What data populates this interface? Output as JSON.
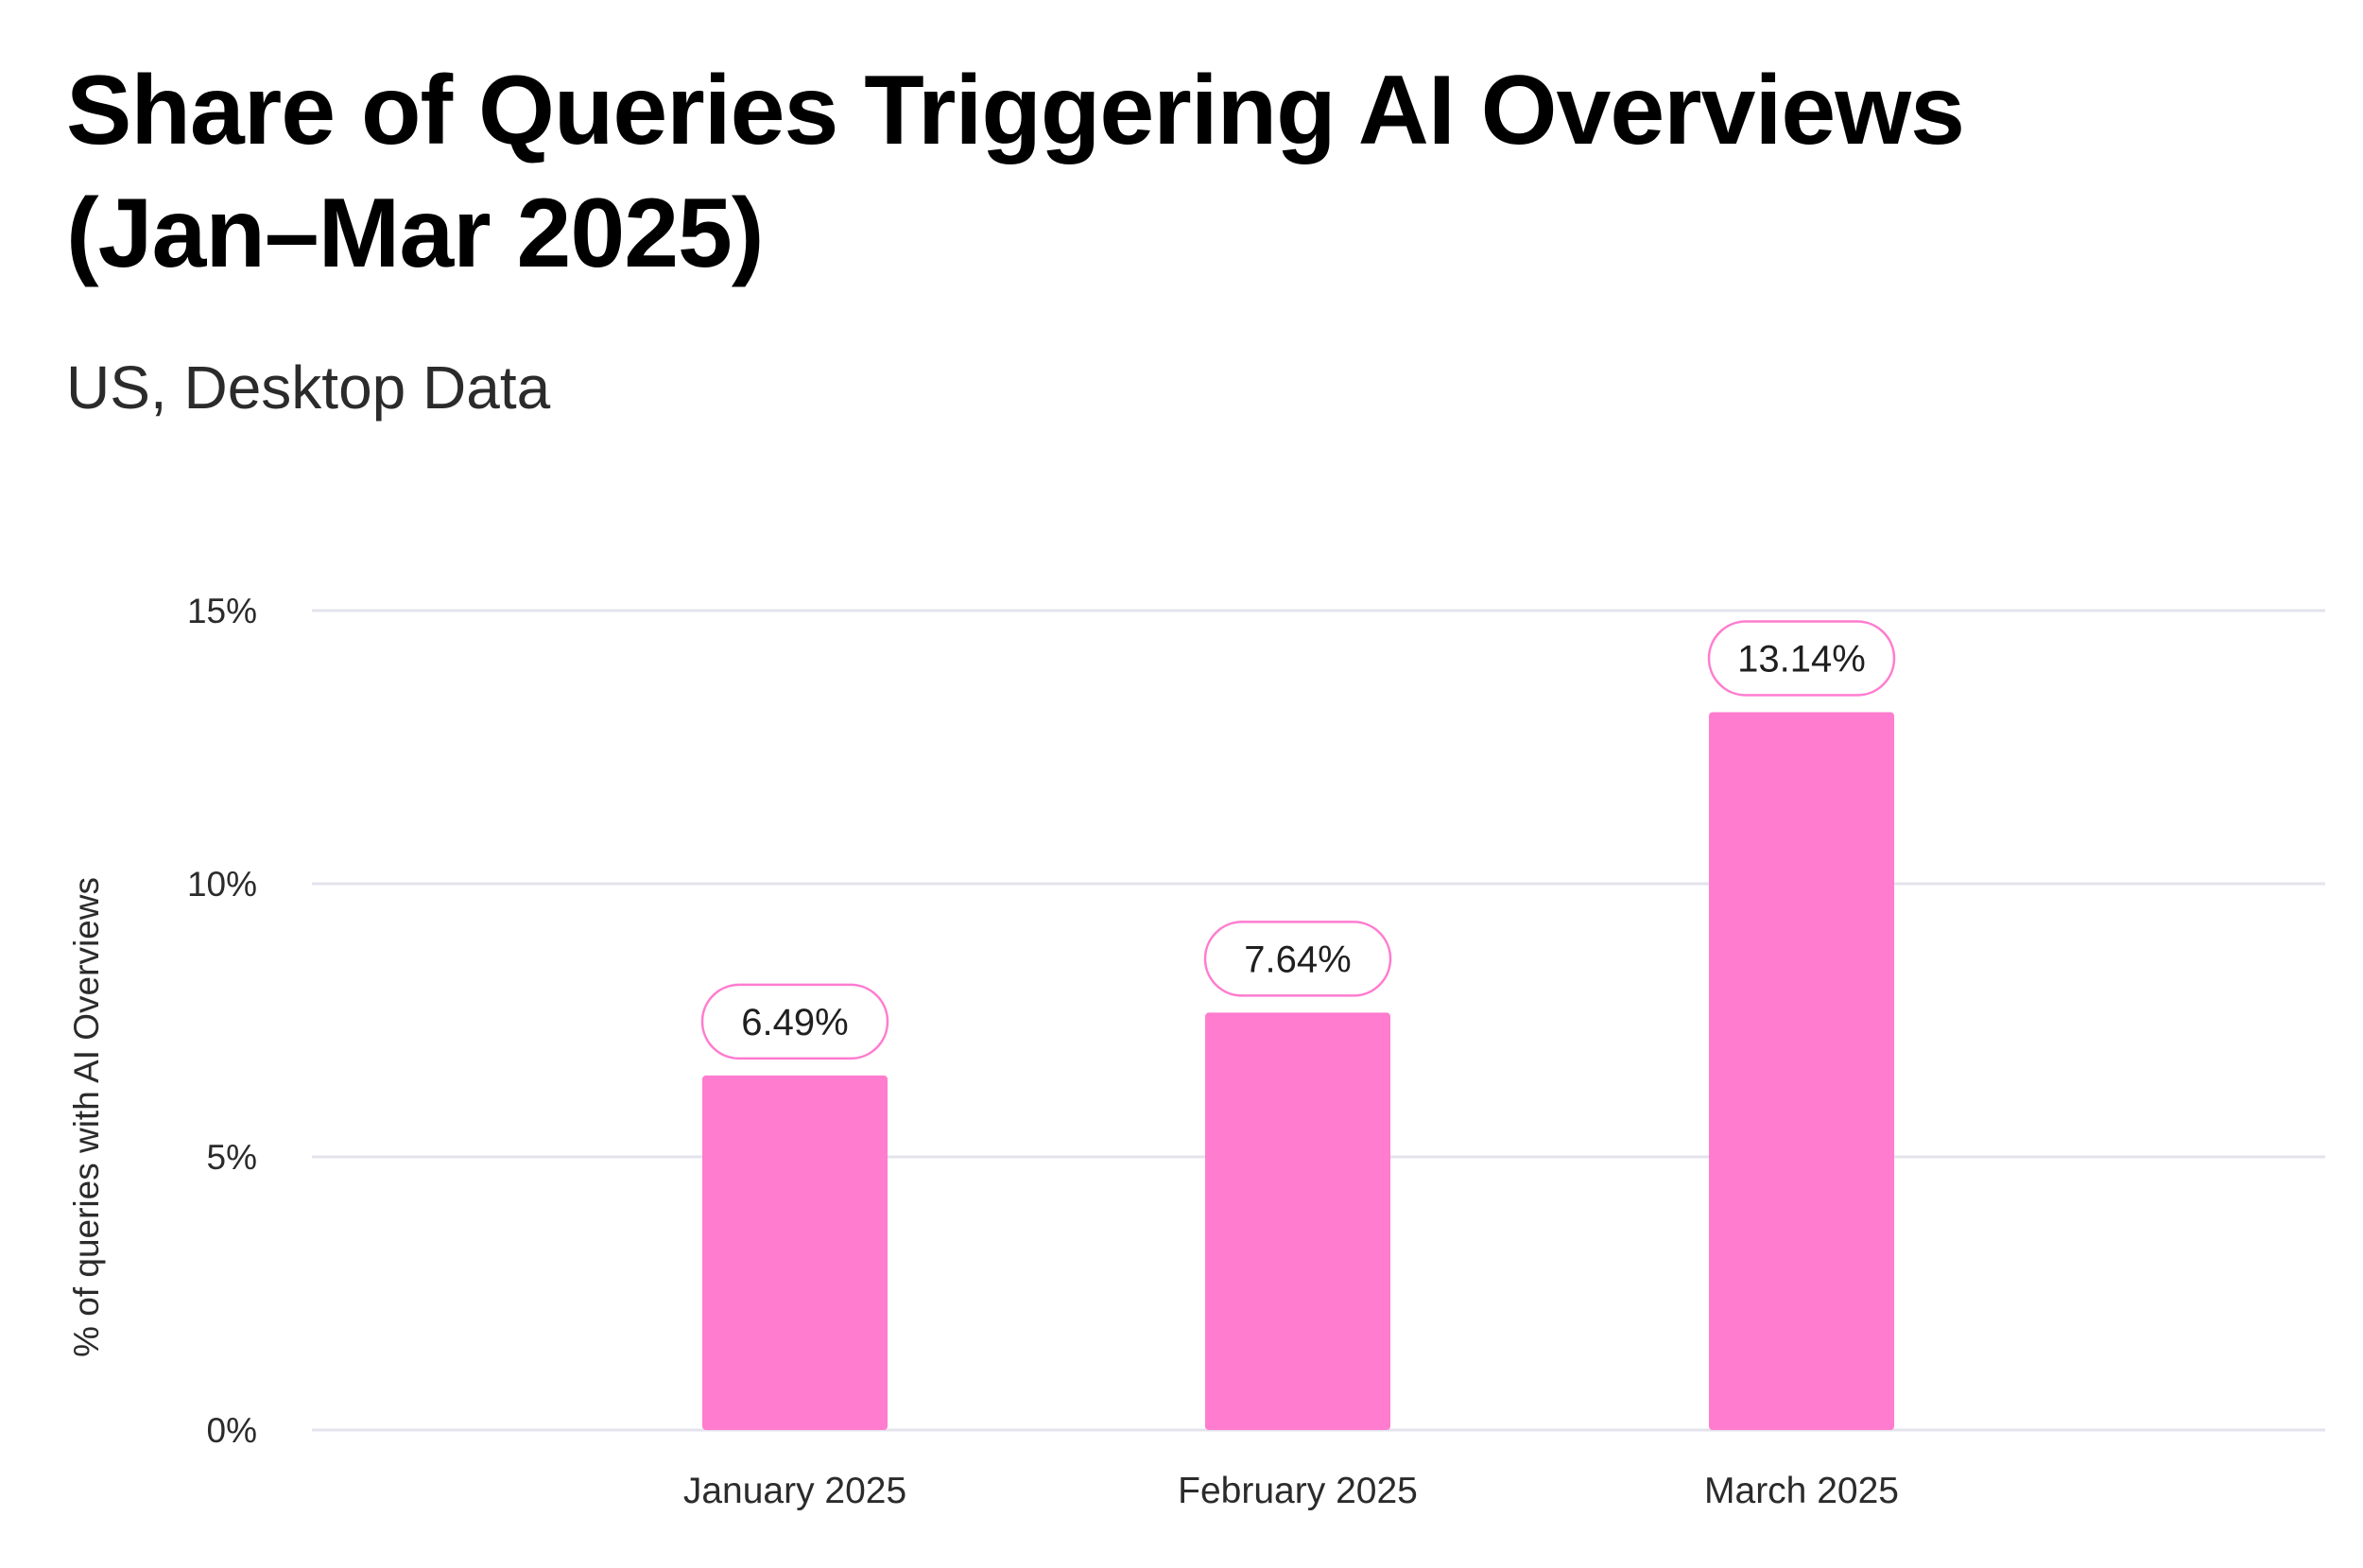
{
  "chart_data": {
    "type": "bar",
    "title": "Share of Queries Triggering AI Overviews (Jan–Mar 2025)",
    "subtitle": "US, Desktop Data",
    "xlabel": "",
    "ylabel": "% of queries with AI Overviews",
    "categories": [
      "January 2025",
      "February 2025",
      "March 2025"
    ],
    "values": [
      6.49,
      7.64,
      13.14
    ],
    "value_labels": [
      "6.49%",
      "7.64%",
      "13.14%"
    ],
    "ylim": [
      0,
      15
    ],
    "yticks": [
      0,
      5,
      10,
      15
    ],
    "ytick_labels": [
      "0%",
      "5%",
      "10%",
      "15%"
    ],
    "grid": true,
    "legend": "none",
    "colors": {
      "bar": "#ff7ccf",
      "label_border": "#ff7ccf",
      "grid": "#e3e3ec"
    }
  }
}
